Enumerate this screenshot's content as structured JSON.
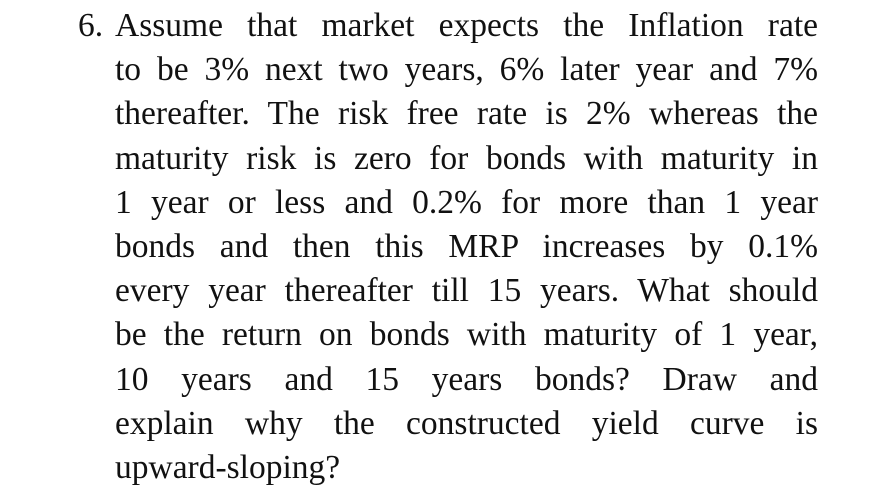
{
  "question": {
    "number": "6.",
    "lines": [
      "Assume that market expects the Inflation rate",
      "to be 3% next two years, 6% later year and 7%",
      "thereafter. The risk free rate is 2% whereas the",
      "maturity risk is zero for bonds with maturity in",
      "1 year or less and 0.2% for more than 1 year",
      "bonds and then this MRP increases by 0.1%",
      "every year thereafter till 15 years. What should",
      "be the return on bonds with maturity of 1 year,",
      "10 years and 15 years bonds? Draw and",
      "explain why the constructed yield curve is",
      "upward-sloping?"
    ]
  }
}
